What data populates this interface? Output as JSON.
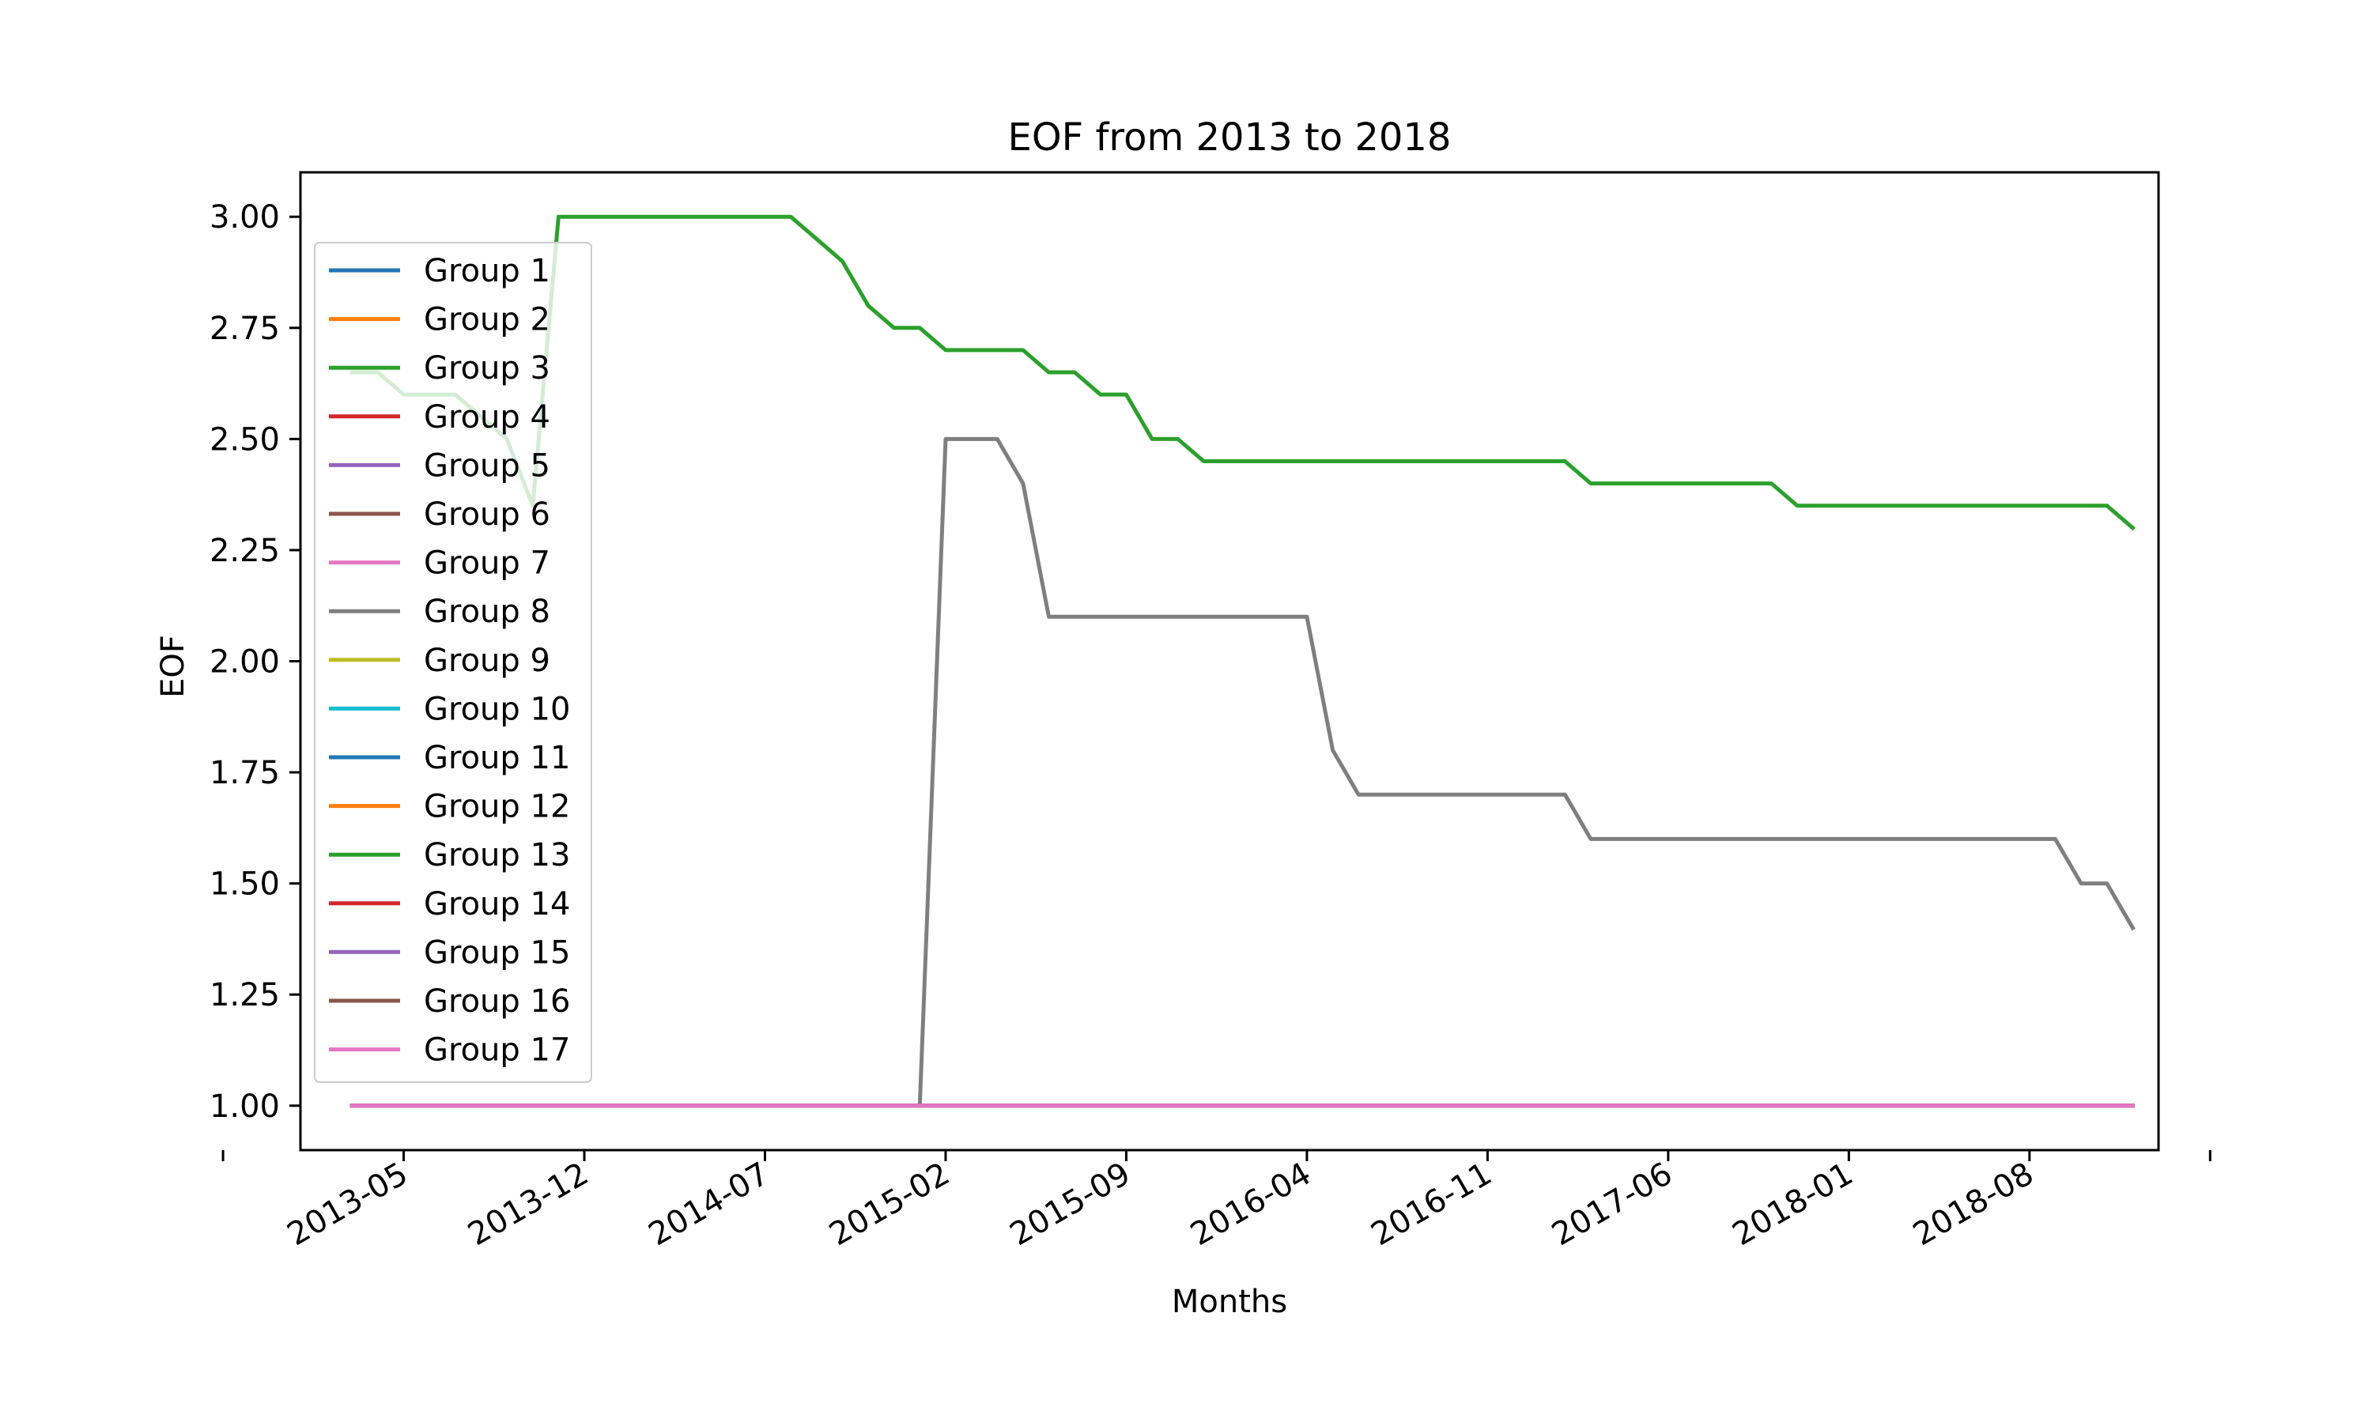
{
  "chart_data": {
    "type": "line",
    "title": "EOF from 2013 to 2018",
    "xlabel": "Months",
    "ylabel": "EOF",
    "x_tick_labels": [
      "2013-05",
      "2013-12",
      "2014-07",
      "2015-02",
      "2015-09",
      "2016-04",
      "2016-11",
      "2017-06",
      "2018-01",
      "2018-08"
    ],
    "y_tick_labels": [
      "1.00",
      "1.25",
      "1.50",
      "1.75",
      "2.00",
      "2.25",
      "2.50",
      "2.75",
      "3.00"
    ],
    "xlim": [
      "2013-01",
      "2019-01"
    ],
    "ylim": [
      0.9,
      3.1
    ],
    "grid": false,
    "legend_position": "upper-left",
    "x": [
      "2013-03",
      "2013-04",
      "2013-05",
      "2013-06",
      "2013-07",
      "2013-08",
      "2013-09",
      "2013-10",
      "2013-11",
      "2013-12",
      "2014-01",
      "2014-02",
      "2014-03",
      "2014-04",
      "2014-05",
      "2014-06",
      "2014-07",
      "2014-08",
      "2014-09",
      "2014-10",
      "2014-11",
      "2014-12",
      "2015-01",
      "2015-02",
      "2015-03",
      "2015-04",
      "2015-05",
      "2015-06",
      "2015-07",
      "2015-08",
      "2015-09",
      "2015-10",
      "2015-11",
      "2015-12",
      "2016-01",
      "2016-02",
      "2016-03",
      "2016-04",
      "2016-05",
      "2016-06",
      "2016-07",
      "2016-08",
      "2016-09",
      "2016-10",
      "2016-11",
      "2016-12",
      "2017-01",
      "2017-02",
      "2017-03",
      "2017-04",
      "2017-05",
      "2017-06",
      "2017-07",
      "2017-08",
      "2017-09",
      "2017-10",
      "2017-11",
      "2017-12",
      "2018-01",
      "2018-02",
      "2018-03",
      "2018-04",
      "2018-05",
      "2018-06",
      "2018-07",
      "2018-08",
      "2018-09",
      "2018-10",
      "2018-11",
      "2018-12"
    ],
    "series": [
      {
        "name": "Group 1",
        "color": "#1f77b4",
        "values": [
          1,
          1,
          1,
          1,
          1,
          1,
          1,
          1,
          1,
          1,
          1,
          1,
          1,
          1,
          1,
          1,
          1,
          1,
          1,
          1,
          1,
          1,
          1,
          1,
          1,
          1,
          1,
          1,
          1,
          1,
          1,
          1,
          1,
          1,
          1,
          1,
          1,
          1,
          1,
          1,
          1,
          1,
          1,
          1,
          1,
          1,
          1,
          1,
          1,
          1,
          1,
          1,
          1,
          1,
          1,
          1,
          1,
          1,
          1,
          1,
          1,
          1,
          1,
          1,
          1,
          1,
          1,
          1,
          1,
          1
        ]
      },
      {
        "name": "Group 2",
        "color": "#ff7f0e",
        "values": [
          1,
          1,
          1,
          1,
          1,
          1,
          1,
          1,
          1,
          1,
          1,
          1,
          1,
          1,
          1,
          1,
          1,
          1,
          1,
          1,
          1,
          1,
          1,
          1,
          1,
          1,
          1,
          1,
          1,
          1,
          1,
          1,
          1,
          1,
          1,
          1,
          1,
          1,
          1,
          1,
          1,
          1,
          1,
          1,
          1,
          1,
          1,
          1,
          1,
          1,
          1,
          1,
          1,
          1,
          1,
          1,
          1,
          1,
          1,
          1,
          1,
          1,
          1,
          1,
          1,
          1,
          1,
          1,
          1,
          1
        ]
      },
      {
        "name": "Group 3",
        "color": "#2ca02c",
        "values": [
          2.65,
          2.65,
          2.6,
          2.6,
          2.6,
          2.55,
          2.5,
          2.35,
          3.0,
          3.0,
          3.0,
          3.0,
          3.0,
          3.0,
          3.0,
          3.0,
          3.0,
          3.0,
          2.95,
          2.9,
          2.8,
          2.75,
          2.75,
          2.7,
          2.7,
          2.7,
          2.7,
          2.65,
          2.65,
          2.6,
          2.6,
          2.5,
          2.5,
          2.45,
          2.45,
          2.45,
          2.45,
          2.45,
          2.45,
          2.45,
          2.45,
          2.45,
          2.45,
          2.45,
          2.45,
          2.45,
          2.45,
          2.45,
          2.4,
          2.4,
          2.4,
          2.4,
          2.4,
          2.4,
          2.4,
          2.4,
          2.35,
          2.35,
          2.35,
          2.35,
          2.35,
          2.35,
          2.35,
          2.35,
          2.35,
          2.35,
          2.35,
          2.35,
          2.35,
          2.3
        ]
      },
      {
        "name": "Group 4",
        "color": "#d62728",
        "values": [
          1,
          1,
          1,
          1,
          1,
          1,
          1,
          1,
          1,
          1,
          1,
          1,
          1,
          1,
          1,
          1,
          1,
          1,
          1,
          1,
          1,
          1,
          1,
          1,
          1,
          1,
          1,
          1,
          1,
          1,
          1,
          1,
          1,
          1,
          1,
          1,
          1,
          1,
          1,
          1,
          1,
          1,
          1,
          1,
          1,
          1,
          1,
          1,
          1,
          1,
          1,
          1,
          1,
          1,
          1,
          1,
          1,
          1,
          1,
          1,
          1,
          1,
          1,
          1,
          1,
          1,
          1,
          1,
          1,
          1
        ]
      },
      {
        "name": "Group 5",
        "color": "#9467bd",
        "values": [
          1,
          1,
          1,
          1,
          1,
          1,
          1,
          1,
          1,
          1,
          1,
          1,
          1,
          1,
          1,
          1,
          1,
          1,
          1,
          1,
          1,
          1,
          1,
          1,
          1,
          1,
          1,
          1,
          1,
          1,
          1,
          1,
          1,
          1,
          1,
          1,
          1,
          1,
          1,
          1,
          1,
          1,
          1,
          1,
          1,
          1,
          1,
          1,
          1,
          1,
          1,
          1,
          1,
          1,
          1,
          1,
          1,
          1,
          1,
          1,
          1,
          1,
          1,
          1,
          1,
          1,
          1,
          1,
          1,
          1
        ]
      },
      {
        "name": "Group 6",
        "color": "#8c564b",
        "values": [
          1,
          1,
          1,
          1,
          1,
          1,
          1,
          1,
          1,
          1,
          1,
          1,
          1,
          1,
          1,
          1,
          1,
          1,
          1,
          1,
          1,
          1,
          1,
          1,
          1,
          1,
          1,
          1,
          1,
          1,
          1,
          1,
          1,
          1,
          1,
          1,
          1,
          1,
          1,
          1,
          1,
          1,
          1,
          1,
          1,
          1,
          1,
          1,
          1,
          1,
          1,
          1,
          1,
          1,
          1,
          1,
          1,
          1,
          1,
          1,
          1,
          1,
          1,
          1,
          1,
          1,
          1,
          1,
          1,
          1
        ]
      },
      {
        "name": "Group 7",
        "color": "#e377c2",
        "values": [
          1,
          1,
          1,
          1,
          1,
          1,
          1,
          1,
          1,
          1,
          1,
          1,
          1,
          1,
          1,
          1,
          1,
          1,
          1,
          1,
          1,
          1,
          1,
          1,
          1,
          1,
          1,
          1,
          1,
          1,
          1,
          1,
          1,
          1,
          1,
          1,
          1,
          1,
          1,
          1,
          1,
          1,
          1,
          1,
          1,
          1,
          1,
          1,
          1,
          1,
          1,
          1,
          1,
          1,
          1,
          1,
          1,
          1,
          1,
          1,
          1,
          1,
          1,
          1,
          1,
          1,
          1,
          1,
          1,
          1
        ]
      },
      {
        "name": "Group 8",
        "color": "#7f7f7f",
        "values": [
          1,
          1,
          1,
          1,
          1,
          1,
          1,
          1,
          1,
          1,
          1,
          1,
          1,
          1,
          1,
          1,
          1,
          1,
          1,
          1,
          1,
          1,
          1,
          2.5,
          2.5,
          2.5,
          2.4,
          2.1,
          2.1,
          2.1,
          2.1,
          2.1,
          2.1,
          2.1,
          2.1,
          2.1,
          2.1,
          2.1,
          1.8,
          1.7,
          1.7,
          1.7,
          1.7,
          1.7,
          1.7,
          1.7,
          1.7,
          1.7,
          1.6,
          1.6,
          1.6,
          1.6,
          1.6,
          1.6,
          1.6,
          1.6,
          1.6,
          1.6,
          1.6,
          1.6,
          1.6,
          1.6,
          1.6,
          1.6,
          1.6,
          1.6,
          1.6,
          1.5,
          1.5,
          1.4
        ]
      },
      {
        "name": "Group 9",
        "color": "#bcbd22",
        "values": [
          1,
          1,
          1,
          1,
          1,
          1,
          1,
          1,
          1,
          1,
          1,
          1,
          1,
          1,
          1,
          1,
          1,
          1,
          1,
          1,
          1,
          1,
          1,
          1,
          1,
          1,
          1,
          1,
          1,
          1,
          1,
          1,
          1,
          1,
          1,
          1,
          1,
          1,
          1,
          1,
          1,
          1,
          1,
          1,
          1,
          1,
          1,
          1,
          1,
          1,
          1,
          1,
          1,
          1,
          1,
          1,
          1,
          1,
          1,
          1,
          1,
          1,
          1,
          1,
          1,
          1,
          1,
          1,
          1,
          1
        ]
      },
      {
        "name": "Group 10",
        "color": "#17becf",
        "values": [
          1,
          1,
          1,
          1,
          1,
          1,
          1,
          1,
          1,
          1,
          1,
          1,
          1,
          1,
          1,
          1,
          1,
          1,
          1,
          1,
          1,
          1,
          1,
          1,
          1,
          1,
          1,
          1,
          1,
          1,
          1,
          1,
          1,
          1,
          1,
          1,
          1,
          1,
          1,
          1,
          1,
          1,
          1,
          1,
          1,
          1,
          1,
          1,
          1,
          1,
          1,
          1,
          1,
          1,
          1,
          1,
          1,
          1,
          1,
          1,
          1,
          1,
          1,
          1,
          1,
          1,
          1,
          1,
          1,
          1
        ]
      },
      {
        "name": "Group 11",
        "color": "#1f77b4",
        "values": [
          1,
          1,
          1,
          1,
          1,
          1,
          1,
          1,
          1,
          1,
          1,
          1,
          1,
          1,
          1,
          1,
          1,
          1,
          1,
          1,
          1,
          1,
          1,
          1,
          1,
          1,
          1,
          1,
          1,
          1,
          1,
          1,
          1,
          1,
          1,
          1,
          1,
          1,
          1,
          1,
          1,
          1,
          1,
          1,
          1,
          1,
          1,
          1,
          1,
          1,
          1,
          1,
          1,
          1,
          1,
          1,
          1,
          1,
          1,
          1,
          1,
          1,
          1,
          1,
          1,
          1,
          1,
          1,
          1,
          1
        ]
      },
      {
        "name": "Group 12",
        "color": "#ff7f0e",
        "values": [
          1,
          1,
          1,
          1,
          1,
          1,
          1,
          1,
          1,
          1,
          1,
          1,
          1,
          1,
          1,
          1,
          1,
          1,
          1,
          1,
          1,
          1,
          1,
          1,
          1,
          1,
          1,
          1,
          1,
          1,
          1,
          1,
          1,
          1,
          1,
          1,
          1,
          1,
          1,
          1,
          1,
          1,
          1,
          1,
          1,
          1,
          1,
          1,
          1,
          1,
          1,
          1,
          1,
          1,
          1,
          1,
          1,
          1,
          1,
          1,
          1,
          1,
          1,
          1,
          1,
          1,
          1,
          1,
          1,
          1
        ]
      },
      {
        "name": "Group 13",
        "color": "#2ca02c",
        "values": [
          1,
          1,
          1,
          1,
          1,
          1,
          1,
          1,
          1,
          1,
          1,
          1,
          1,
          1,
          1,
          1,
          1,
          1,
          1,
          1,
          1,
          1,
          1,
          1,
          1,
          1,
          1,
          1,
          1,
          1,
          1,
          1,
          1,
          1,
          1,
          1,
          1,
          1,
          1,
          1,
          1,
          1,
          1,
          1,
          1,
          1,
          1,
          1,
          1,
          1,
          1,
          1,
          1,
          1,
          1,
          1,
          1,
          1,
          1,
          1,
          1,
          1,
          1,
          1,
          1,
          1,
          1,
          1,
          1,
          1
        ]
      },
      {
        "name": "Group 14",
        "color": "#d62728",
        "values": [
          1,
          1,
          1,
          1,
          1,
          1,
          1,
          1,
          1,
          1,
          1,
          1,
          1,
          1,
          1,
          1,
          1,
          1,
          1,
          1,
          1,
          1,
          1,
          1,
          1,
          1,
          1,
          1,
          1,
          1,
          1,
          1,
          1,
          1,
          1,
          1,
          1,
          1,
          1,
          1,
          1,
          1,
          1,
          1,
          1,
          1,
          1,
          1,
          1,
          1,
          1,
          1,
          1,
          1,
          1,
          1,
          1,
          1,
          1,
          1,
          1,
          1,
          1,
          1,
          1,
          1,
          1,
          1,
          1,
          1
        ]
      },
      {
        "name": "Group 15",
        "color": "#9467bd",
        "values": [
          1,
          1,
          1,
          1,
          1,
          1,
          1,
          1,
          1,
          1,
          1,
          1,
          1,
          1,
          1,
          1,
          1,
          1,
          1,
          1,
          1,
          1,
          1,
          1,
          1,
          1,
          1,
          1,
          1,
          1,
          1,
          1,
          1,
          1,
          1,
          1,
          1,
          1,
          1,
          1,
          1,
          1,
          1,
          1,
          1,
          1,
          1,
          1,
          1,
          1,
          1,
          1,
          1,
          1,
          1,
          1,
          1,
          1,
          1,
          1,
          1,
          1,
          1,
          1,
          1,
          1,
          1,
          1,
          1,
          1
        ]
      },
      {
        "name": "Group 16",
        "color": "#8c564b",
        "values": [
          1,
          1,
          1,
          1,
          1,
          1,
          1,
          1,
          1,
          1,
          1,
          1,
          1,
          1,
          1,
          1,
          1,
          1,
          1,
          1,
          1,
          1,
          1,
          1,
          1,
          1,
          1,
          1,
          1,
          1,
          1,
          1,
          1,
          1,
          1,
          1,
          1,
          1,
          1,
          1,
          1,
          1,
          1,
          1,
          1,
          1,
          1,
          1,
          1,
          1,
          1,
          1,
          1,
          1,
          1,
          1,
          1,
          1,
          1,
          1,
          1,
          1,
          1,
          1,
          1,
          1,
          1,
          1,
          1,
          1
        ]
      },
      {
        "name": "Group 17",
        "color": "#e377c2",
        "values": [
          1,
          1,
          1,
          1,
          1,
          1,
          1,
          1,
          1,
          1,
          1,
          1,
          1,
          1,
          1,
          1,
          1,
          1,
          1,
          1,
          1,
          1,
          1,
          1,
          1,
          1,
          1,
          1,
          1,
          1,
          1,
          1,
          1,
          1,
          1,
          1,
          1,
          1,
          1,
          1,
          1,
          1,
          1,
          1,
          1,
          1,
          1,
          1,
          1,
          1,
          1,
          1,
          1,
          1,
          1,
          1,
          1,
          1,
          1,
          1,
          1,
          1,
          1,
          1,
          1,
          1,
          1,
          1,
          1,
          1
        ]
      }
    ]
  }
}
